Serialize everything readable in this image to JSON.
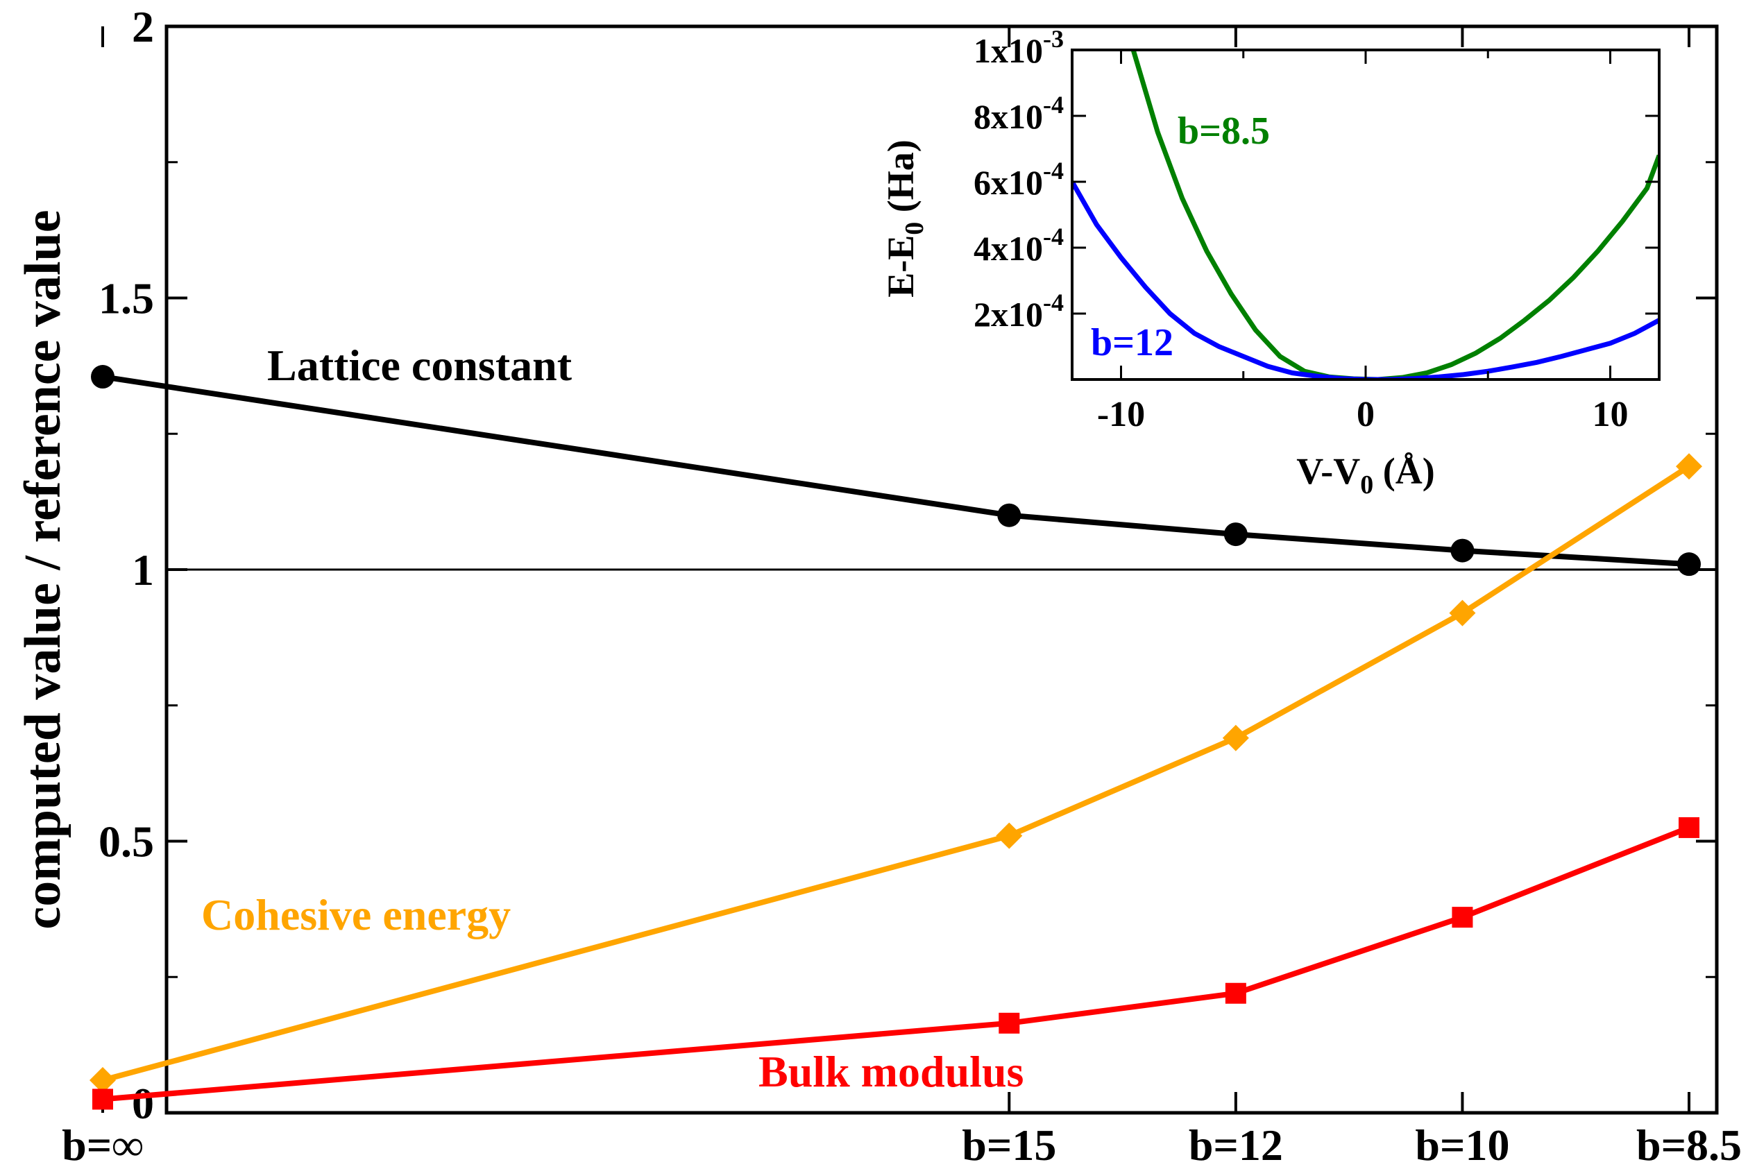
{
  "chart_data": [
    {
      "type": "line",
      "ylabel": "computed value / reference value",
      "xlabel": "",
      "categories": [
        "b=∞",
        "b=15",
        "b=12",
        "b=10",
        "b=8.5"
      ],
      "category_x": [
        0,
        4,
        5,
        6,
        7
      ],
      "ylim": [
        0,
        2
      ],
      "yticks": [
        0,
        0.5,
        1,
        1.5,
        2
      ],
      "ytick_labels": [
        "0",
        "0.5",
        "1",
        "1.5",
        "2"
      ],
      "reference_line": 1,
      "series": [
        {
          "name": "Lattice constant",
          "color": "#000000",
          "marker": "circle",
          "values": [
            1.355,
            1.1,
            1.065,
            1.035,
            1.01
          ]
        },
        {
          "name": "Cohesive energy",
          "color": "#ffa500",
          "marker": "diamond",
          "values": [
            0.06,
            0.51,
            0.69,
            0.92,
            1.19
          ]
        },
        {
          "name": "Bulk modulus",
          "color": "#ff0000",
          "marker": "square",
          "values": [
            0.025,
            0.165,
            0.22,
            0.36,
            0.525
          ]
        }
      ]
    },
    {
      "type": "line",
      "inset": true,
      "xlabel_main": "V-V",
      "xlabel_sub": "0",
      "xlabel_tail": " (Å)",
      "ylabel_main": "E-E",
      "ylabel_sub": "0",
      "ylabel_tail": " (Ha)",
      "xlim": [
        -12,
        12
      ],
      "ylim": [
        0,
        0.001
      ],
      "xticks": [
        -10,
        0,
        10
      ],
      "xtick_labels": [
        "-10",
        "0",
        "10"
      ],
      "yticks": [
        0.0002,
        0.0004,
        0.0006,
        0.0008,
        0.001
      ],
      "ytick_labels": [
        {
          "base": "2x10",
          "exp": "-4"
        },
        {
          "base": "4x10",
          "exp": "-4"
        },
        {
          "base": "6x10",
          "exp": "-4"
        },
        {
          "base": "8x10",
          "exp": "-4"
        },
        {
          "base": "1x10",
          "exp": "-3"
        }
      ],
      "series": [
        {
          "name": "b=8.5",
          "color": "#008000",
          "x": [
            -9.5,
            -8.5,
            -7.5,
            -6.5,
            -5.5,
            -4.5,
            -3.5,
            -2.5,
            -1.5,
            -0.5,
            0.5,
            1.5,
            2.5,
            3.5,
            4.5,
            5.5,
            6.5,
            7.5,
            8.5,
            9.5,
            10.5,
            11.5,
            12
          ],
          "y": [
            0.001,
            0.00075,
            0.00055,
            0.00039,
            0.00026,
            0.00015,
            7e-05,
            2.5e-05,
            8e-06,
            2e-06,
            0.0,
            6e-06,
            2e-05,
            4.5e-05,
            8e-05,
            0.000125,
            0.00018,
            0.00024,
            0.00031,
            0.00039,
            0.00048,
            0.00058,
            0.00068
          ]
        },
        {
          "name": "b=12",
          "color": "#0000ff",
          "x": [
            -12,
            -11,
            -10,
            -9,
            -8,
            -7,
            -6,
            -5,
            -4,
            -3,
            -2,
            -1,
            0,
            1,
            2,
            3,
            4,
            5,
            6,
            7,
            8,
            9,
            10,
            11,
            12
          ],
          "y": [
            0.0006,
            0.00047,
            0.00037,
            0.00028,
            0.0002,
            0.00014,
            0.0001,
            7e-05,
            4e-05,
            2e-05,
            1e-05,
            3e-06,
            0.0,
            0.0,
            3e-06,
            8e-06,
            1.5e-05,
            2.5e-05,
            3.8e-05,
            5.2e-05,
            7e-05,
            9e-05,
            0.00011,
            0.00014,
            0.00018
          ]
        }
      ]
    }
  ]
}
